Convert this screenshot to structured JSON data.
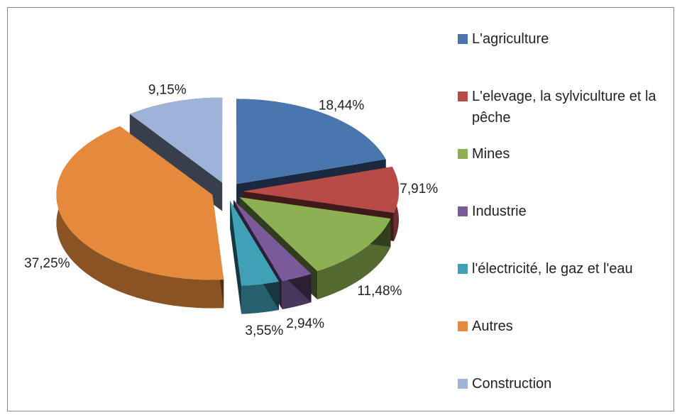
{
  "chart_data": {
    "type": "pie3d",
    "categories": [
      "L'agriculture",
      "L'elevage, la sylviculture et la pêche",
      "Mines",
      "Industrie",
      "l'électricité, le gaz et l'eau",
      "Autres",
      "Construction"
    ],
    "values": [
      18.44,
      7.91,
      11.48,
      2.94,
      3.55,
      37.25,
      9.15
    ],
    "value_labels": [
      "18,44%",
      "7,91%",
      "11,48%",
      "2,94%",
      "3,55%",
      "37,25%",
      "9,15%"
    ],
    "colors": [
      "#4a76b0",
      "#b84a47",
      "#8db052",
      "#7a5a9a",
      "#3fa0b8",
      "#e58a3c",
      "#9fb3d8"
    ],
    "legend": "right"
  }
}
